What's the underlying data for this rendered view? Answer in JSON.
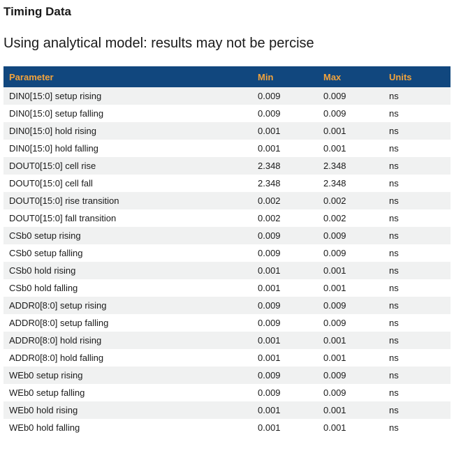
{
  "page": {
    "title": "Timing Data",
    "subtitle": "Using analytical model: results may not be percise"
  },
  "table": {
    "columns": [
      "Parameter",
      "Min",
      "Max",
      "Units"
    ],
    "rows": [
      {
        "parameter": "DIN0[15:0] setup rising",
        "min": "0.009",
        "max": "0.009",
        "units": "ns"
      },
      {
        "parameter": "DIN0[15:0] setup falling",
        "min": "0.009",
        "max": "0.009",
        "units": "ns"
      },
      {
        "parameter": "DIN0[15:0] hold rising",
        "min": "0.001",
        "max": "0.001",
        "units": "ns"
      },
      {
        "parameter": "DIN0[15:0] hold falling",
        "min": "0.001",
        "max": "0.001",
        "units": "ns"
      },
      {
        "parameter": "DOUT0[15:0] cell rise",
        "min": "2.348",
        "max": "2.348",
        "units": "ns"
      },
      {
        "parameter": "DOUT0[15:0] cell fall",
        "min": "2.348",
        "max": "2.348",
        "units": "ns"
      },
      {
        "parameter": "DOUT0[15:0] rise transition",
        "min": "0.002",
        "max": "0.002",
        "units": "ns"
      },
      {
        "parameter": "DOUT0[15:0] fall transition",
        "min": "0.002",
        "max": "0.002",
        "units": "ns"
      },
      {
        "parameter": "CSb0 setup rising",
        "min": "0.009",
        "max": "0.009",
        "units": "ns"
      },
      {
        "parameter": "CSb0 setup falling",
        "min": "0.009",
        "max": "0.009",
        "units": "ns"
      },
      {
        "parameter": "CSb0 hold rising",
        "min": "0.001",
        "max": "0.001",
        "units": "ns"
      },
      {
        "parameter": "CSb0 hold falling",
        "min": "0.001",
        "max": "0.001",
        "units": "ns"
      },
      {
        "parameter": "ADDR0[8:0] setup rising",
        "min": "0.009",
        "max": "0.009",
        "units": "ns"
      },
      {
        "parameter": "ADDR0[8:0] setup falling",
        "min": "0.009",
        "max": "0.009",
        "units": "ns"
      },
      {
        "parameter": "ADDR0[8:0] hold rising",
        "min": "0.001",
        "max": "0.001",
        "units": "ns"
      },
      {
        "parameter": "ADDR0[8:0] hold falling",
        "min": "0.001",
        "max": "0.001",
        "units": "ns"
      },
      {
        "parameter": "WEb0 setup rising",
        "min": "0.009",
        "max": "0.009",
        "units": "ns"
      },
      {
        "parameter": "WEb0 setup falling",
        "min": "0.009",
        "max": "0.009",
        "units": "ns"
      },
      {
        "parameter": "WEb0 hold rising",
        "min": "0.001",
        "max": "0.001",
        "units": "ns"
      },
      {
        "parameter": "WEb0 hold falling",
        "min": "0.001",
        "max": "0.001",
        "units": "ns"
      }
    ]
  },
  "colors": {
    "header_bg": "#11477E",
    "header_text": "#F2A33C",
    "row_alt_bg": "#F0F1F1",
    "row_bg": "#FFFFFF",
    "body_text": "#1A1A1A"
  }
}
